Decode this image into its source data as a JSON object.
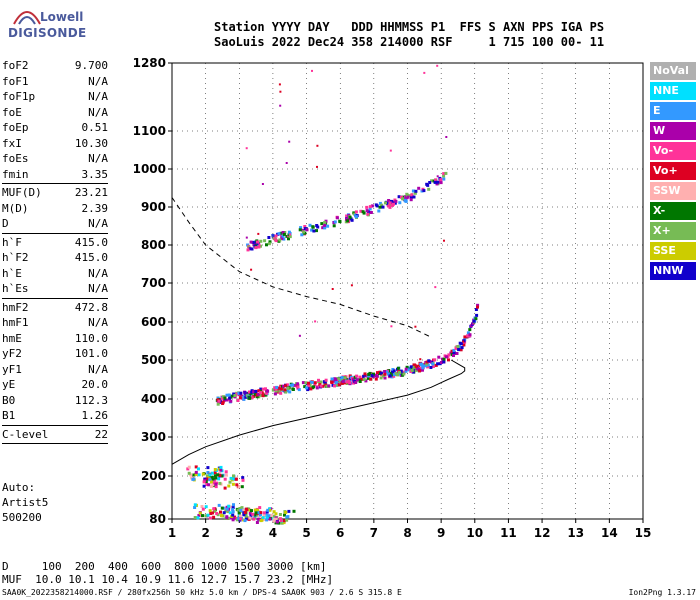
{
  "logo": {
    "line1": "Lowell",
    "line2": "DIGISONDE"
  },
  "header": {
    "row1": "Station YYYY DAY   DDD HHMMSS P1  FFS S AXN PPS IGA PS",
    "row2": "SaoLuis 2022 Dec24 358 214000 RSF     1 715 100 00- 11"
  },
  "params": [
    {
      "name": "foF2",
      "value": "9.700"
    },
    {
      "name": "foF1",
      "value": "N/A"
    },
    {
      "name": "foF1p",
      "value": "N/A"
    },
    {
      "name": "foE",
      "value": "N/A"
    },
    {
      "name": "foEp",
      "value": "0.51"
    },
    {
      "name": "fxI",
      "value": "10.30"
    },
    {
      "name": "foEs",
      "value": "N/A"
    },
    {
      "name": "fmin",
      "value": "3.35"
    },
    {
      "sep": true
    },
    {
      "name": "MUF(D)",
      "value": "23.21"
    },
    {
      "name": "M(D)",
      "value": "2.39"
    },
    {
      "name": "D",
      "value": "N/A"
    },
    {
      "sep": true
    },
    {
      "name": "h`F",
      "value": "415.0"
    },
    {
      "name": "h`F2",
      "value": "415.0"
    },
    {
      "name": "h`E",
      "value": "N/A"
    },
    {
      "name": "h`Es",
      "value": "N/A"
    },
    {
      "sep": true
    },
    {
      "name": "hmF2",
      "value": "472.8"
    },
    {
      "name": "hmF1",
      "value": "N/A"
    },
    {
      "name": "hmE",
      "value": "110.0"
    },
    {
      "name": "yF2",
      "value": "101.0"
    },
    {
      "name": "yF1",
      "value": "N/A"
    },
    {
      "name": "yE",
      "value": "20.0"
    },
    {
      "name": "B0",
      "value": "112.3"
    },
    {
      "name": "B1",
      "value": "1.26"
    },
    {
      "sep": true
    },
    {
      "name": "C-level",
      "value": "22"
    },
    {
      "sep": true
    }
  ],
  "auto": {
    "line1": "Auto:",
    "line2": "Artist5",
    "line3": "500200"
  },
  "legend": [
    {
      "label": "NoVal",
      "color": "#b0b0b0"
    },
    {
      "label": "NNE",
      "color": "#00e0ff"
    },
    {
      "label": "E",
      "color": "#3399ff"
    },
    {
      "label": "W",
      "color": "#aa00aa"
    },
    {
      "label": "Vo-",
      "color": "#ff3399"
    },
    {
      "label": "Vo+",
      "color": "#dd0022"
    },
    {
      "label": "SSW",
      "color": "#ffb0b0"
    },
    {
      "label": "X-",
      "color": "#007700"
    },
    {
      "label": "X+",
      "color": "#77bb55"
    },
    {
      "label": "SSE",
      "color": "#cccc00"
    },
    {
      "label": "NNW",
      "color": "#1100cc"
    }
  ],
  "bottom": {
    "row1": "D     100  200  400  600  800 1000 1500 3000 [km]",
    "row2": "MUF  10.0 10.1 10.4 10.9 11.6 12.7 15.7 23.2 [MHz]"
  },
  "footer": {
    "left": "SAA0K_2022358214000.RSF / 280fx256h 50 kHz 5.0 km / DPS-4 SAA0K 903 / 2.6 S 315.8 E",
    "right": "Ion2Png 1.3.17"
  },
  "chart_data": {
    "type": "scatter",
    "xlim": [
      1,
      15
    ],
    "ylim": [
      80,
      1300
    ],
    "xticks": [
      1,
      2,
      3,
      4,
      5,
      6,
      7,
      8,
      9,
      10,
      11,
      12,
      13,
      14,
      15
    ],
    "yticks": [
      80,
      200,
      300,
      400,
      500,
      600,
      700,
      800,
      900,
      1000,
      1100,
      1280
    ],
    "grid": true,
    "ordinary_trace": [
      [
        2.3,
        400
      ],
      [
        3,
        410
      ],
      [
        4,
        425
      ],
      [
        5,
        438
      ],
      [
        6,
        450
      ],
      [
        7,
        462
      ],
      [
        8,
        478
      ],
      [
        8.5,
        490
      ],
      [
        9,
        505
      ],
      [
        9.3,
        520
      ],
      [
        9.6,
        545
      ],
      [
        9.8,
        575
      ],
      [
        9.95,
        610
      ],
      [
        10.05,
        640
      ]
    ],
    "second_hop_trace": [
      [
        3.2,
        800
      ],
      [
        4,
        820
      ],
      [
        5,
        845
      ],
      [
        6,
        870
      ],
      [
        7,
        900
      ],
      [
        8,
        930
      ],
      [
        8.5,
        955
      ],
      [
        9.1,
        985
      ]
    ],
    "profile_solid": [
      [
        1,
        230
      ],
      [
        1.5,
        255
      ],
      [
        2,
        275
      ],
      [
        3,
        305
      ],
      [
        4,
        330
      ],
      [
        5,
        350
      ],
      [
        6,
        370
      ],
      [
        7,
        390
      ],
      [
        8,
        410
      ],
      [
        8.7,
        430
      ],
      [
        9.2,
        450
      ],
      [
        9.6,
        465
      ],
      [
        9.7,
        472
      ],
      [
        9.7,
        480
      ],
      [
        9.5,
        490
      ],
      [
        9.3,
        500
      ]
    ],
    "profile_dashed": [
      [
        1,
        925
      ],
      [
        1.5,
        860
      ],
      [
        2,
        800
      ],
      [
        3,
        730
      ],
      [
        4,
        690
      ],
      [
        5,
        665
      ],
      [
        6,
        645
      ],
      [
        7,
        615
      ],
      [
        8,
        590
      ],
      [
        8.7,
        560
      ]
    ],
    "low_echo_clusters": [
      [
        2,
        210
      ],
      [
        2.5,
        190
      ],
      [
        3,
        100
      ],
      [
        3.5,
        95
      ],
      [
        2.2,
        105
      ],
      [
        4,
        90
      ]
    ]
  }
}
